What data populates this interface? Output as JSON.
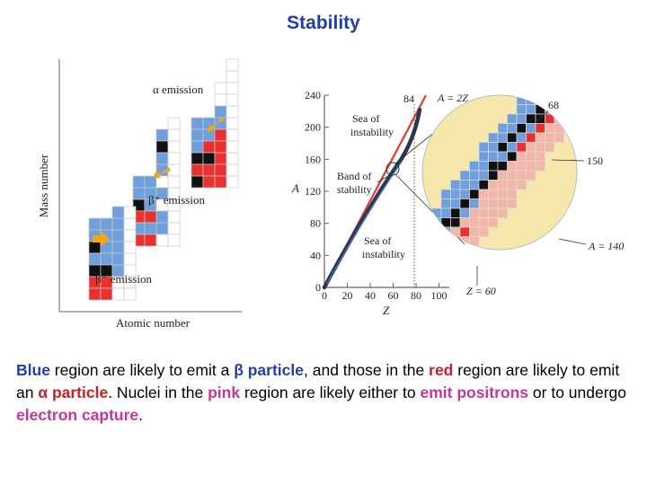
{
  "title": "Stability",
  "left_panel": {
    "y_axis_label": "Mass number",
    "x_axis_label": "Atomic number",
    "alpha_label": "α emission",
    "beta_plus_label": "β⁺ emission",
    "beta_minus_label": "β⁻ emission"
  },
  "main_plot": {
    "y_axis_label": "A",
    "x_axis_label": "Z",
    "y_ticks": [
      "0",
      "40",
      "80",
      "120",
      "160",
      "200",
      "240"
    ],
    "x_ticks": [
      "0",
      "20",
      "40",
      "60",
      "80",
      "100"
    ],
    "marker_84": "84",
    "line_label": "A = 2Z",
    "sea_upper": [
      "Sea of",
      "instability"
    ],
    "band": [
      "Band of",
      "stability"
    ],
    "sea_lower": [
      "Sea of",
      "instability"
    ]
  },
  "zoom": {
    "label_68": "68",
    "label_150": "150",
    "label_a140": "A = 140",
    "label_z60": "Z = 60"
  },
  "colors": {
    "blue": "#6f9fdc",
    "red": "#e8312c",
    "pink": "#f3b7a9",
    "black": "#111111",
    "orange": "#f2a516",
    "title_blue": "#1f3fb0"
  },
  "caption": {
    "blue": "Blue",
    "t1": " region are likely to emit a ",
    "beta": "β particle",
    "t2": ", and those in the ",
    "red": "red",
    "t3": " region are likely to emit an ",
    "alpha": "α particle",
    "t4": ". Nuclei in the ",
    "pink": "pink",
    "t5": " region are likely either to ",
    "emit_positrons": "emit positrons",
    "t6": " or to undergo ",
    "electron_capture": "electron capture",
    "t7": "."
  }
}
